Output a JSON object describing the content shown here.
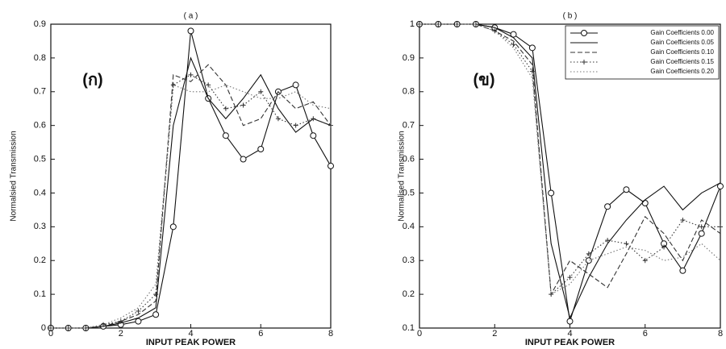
{
  "chart_data": [
    {
      "type": "line",
      "title": "( a )",
      "annotation": "(ก)",
      "xlabel": "INPUT PEAK POWER",
      "ylabel": "Normalsied Transmission",
      "x": [
        0,
        0.5,
        1,
        1.5,
        2,
        2.5,
        3,
        3.5,
        4,
        4.5,
        5,
        5.5,
        6,
        6.5,
        7,
        7.5,
        8
      ],
      "xlim": [
        0,
        8
      ],
      "xticks": [
        0,
        2,
        4,
        6,
        8
      ],
      "ylim": [
        0,
        0.9
      ],
      "yticks": [
        0,
        0.1,
        0.2,
        0.3,
        0.4,
        0.5,
        0.6,
        0.7,
        0.8,
        0.9
      ],
      "series": [
        {
          "color": "#111",
          "dash": "solid",
          "marker": "circle",
          "values": [
            0,
            0,
            0,
            0.005,
            0.01,
            0.02,
            0.04,
            0.3,
            0.88,
            0.68,
            0.57,
            0.5,
            0.53,
            0.7,
            0.72,
            0.57,
            0.48
          ]
        },
        {
          "color": "#111",
          "dash": "solid",
          "marker": "none",
          "values": [
            0,
            0,
            0,
            0.005,
            0.015,
            0.03,
            0.06,
            0.6,
            0.8,
            0.68,
            0.62,
            0.68,
            0.75,
            0.65,
            0.58,
            0.62,
            0.6
          ]
        },
        {
          "color": "#333",
          "dash": "dashed",
          "marker": "none",
          "values": [
            0,
            0,
            0,
            0.005,
            0.02,
            0.04,
            0.08,
            0.75,
            0.73,
            0.78,
            0.72,
            0.6,
            0.62,
            0.7,
            0.65,
            0.67,
            0.6
          ]
        },
        {
          "color": "#333",
          "dash": "dotted",
          "marker": "plus",
          "values": [
            0,
            0,
            0,
            0.01,
            0.02,
            0.05,
            0.1,
            0.72,
            0.75,
            0.72,
            0.65,
            0.66,
            0.7,
            0.62,
            0.6,
            0.62,
            0.6
          ]
        },
        {
          "color": "#777",
          "dash": "dotted",
          "marker": "none",
          "values": [
            0,
            0,
            0,
            0.01,
            0.03,
            0.06,
            0.13,
            0.72,
            0.7,
            0.7,
            0.72,
            0.7,
            0.68,
            0.68,
            0.7,
            0.66,
            0.65
          ]
        }
      ]
    },
    {
      "type": "line",
      "title": "( b )",
      "annotation": "(ข)",
      "xlabel": "INPUT PEAK POWER",
      "ylabel": "Normalised Transmission",
      "legend": "upper right",
      "x": [
        0,
        0.5,
        1,
        1.5,
        2,
        2.5,
        3,
        3.5,
        4,
        4.5,
        5,
        5.5,
        6,
        6.5,
        7,
        7.5,
        8
      ],
      "xlim": [
        0,
        8
      ],
      "xticks": [
        0,
        2,
        4,
        6,
        8
      ],
      "ylim": [
        0.1,
        1
      ],
      "yticks": [
        0.1,
        0.2,
        0.3,
        0.4,
        0.5,
        0.6,
        0.7,
        0.8,
        0.9,
        1
      ],
      "series": [
        {
          "name": "Gain Coefficients 0.00",
          "color": "#111",
          "dash": "solid",
          "marker": "circle",
          "values": [
            1,
            1,
            1,
            1,
            0.99,
            0.97,
            0.93,
            0.5,
            0.12,
            0.3,
            0.46,
            0.51,
            0.47,
            0.35,
            0.27,
            0.38,
            0.52
          ]
        },
        {
          "name": "Gain Coefficients 0.05",
          "color": "#111",
          "dash": "solid",
          "marker": "none",
          "values": [
            1,
            1,
            1,
            1,
            0.99,
            0.96,
            0.9,
            0.35,
            0.13,
            0.25,
            0.35,
            0.42,
            0.48,
            0.52,
            0.45,
            0.5,
            0.53
          ]
        },
        {
          "name": "Gain Coefficients 0.10",
          "color": "#333",
          "dash": "dashed",
          "marker": "none",
          "values": [
            1,
            1,
            1,
            1,
            0.98,
            0.95,
            0.88,
            0.2,
            0.3,
            0.26,
            0.22,
            0.32,
            0.43,
            0.38,
            0.3,
            0.42,
            0.38
          ]
        },
        {
          "name": "Gain Coefficients 0.15",
          "color": "#333",
          "dash": "dotted",
          "marker": "plus",
          "values": [
            1,
            1,
            1,
            1,
            0.98,
            0.94,
            0.86,
            0.2,
            0.25,
            0.32,
            0.36,
            0.35,
            0.3,
            0.34,
            0.42,
            0.4,
            0.4
          ]
        },
        {
          "name": "Gain Coefficients 0.20",
          "color": "#777",
          "dash": "dotted",
          "marker": "none",
          "values": [
            1,
            1,
            1,
            1,
            0.98,
            0.93,
            0.84,
            0.2,
            0.23,
            0.3,
            0.32,
            0.34,
            0.33,
            0.3,
            0.31,
            0.35,
            0.3
          ]
        }
      ]
    }
  ]
}
